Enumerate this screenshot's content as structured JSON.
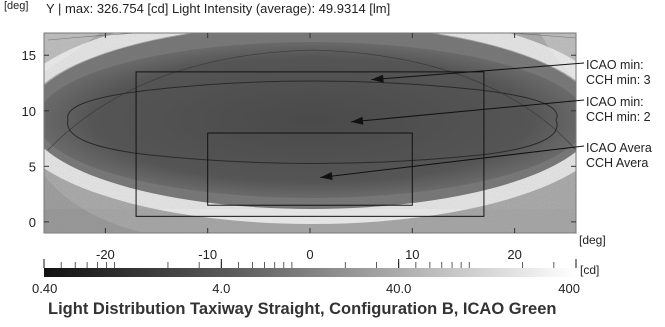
{
  "header": {
    "y_unit": "[deg]",
    "text": "Y  | max: 326.754 [cd] Light Intensity (average): 49.9314 [lm]"
  },
  "chart_data": {
    "type": "heatmap",
    "title": "Light Distribution Taxiway Straight, Configuration B, ICAO Green",
    "xlabel": "[deg]",
    "ylabel": "Y",
    "y_unit": "[deg]",
    "xlim": [
      -26,
      26
    ],
    "ylim": [
      -1,
      17
    ],
    "x_ticks": [
      -20,
      -10,
      0,
      10,
      20
    ],
    "y_ticks": [
      0,
      5,
      10,
      15
    ],
    "max_intensity_cd": 326.754,
    "average_light_intensity_lm": 49.9314,
    "regions": [
      {
        "x": [
          -17,
          17
        ],
        "y": [
          0.5,
          13.5
        ]
      },
      {
        "x": [
          -10,
          10
        ],
        "y": [
          1.5,
          8
        ]
      }
    ],
    "annotations": [
      {
        "lines": [
          "ICAO min: ",
          "CCH min: 3"
        ],
        "target": [
          6,
          12.8
        ]
      },
      {
        "lines": [
          "ICAO min: ",
          "CCH min: 2"
        ],
        "target": [
          4,
          9
        ]
      },
      {
        "lines": [
          "ICAO Avera",
          "CCH Avera"
        ],
        "target": [
          1,
          4
        ]
      }
    ],
    "colorbar": {
      "scale": "log",
      "range": [
        0.4,
        400
      ],
      "unit": "[cd]",
      "tick_labels": [
        "0.40",
        "4.0",
        "40.0",
        "400"
      ]
    }
  }
}
